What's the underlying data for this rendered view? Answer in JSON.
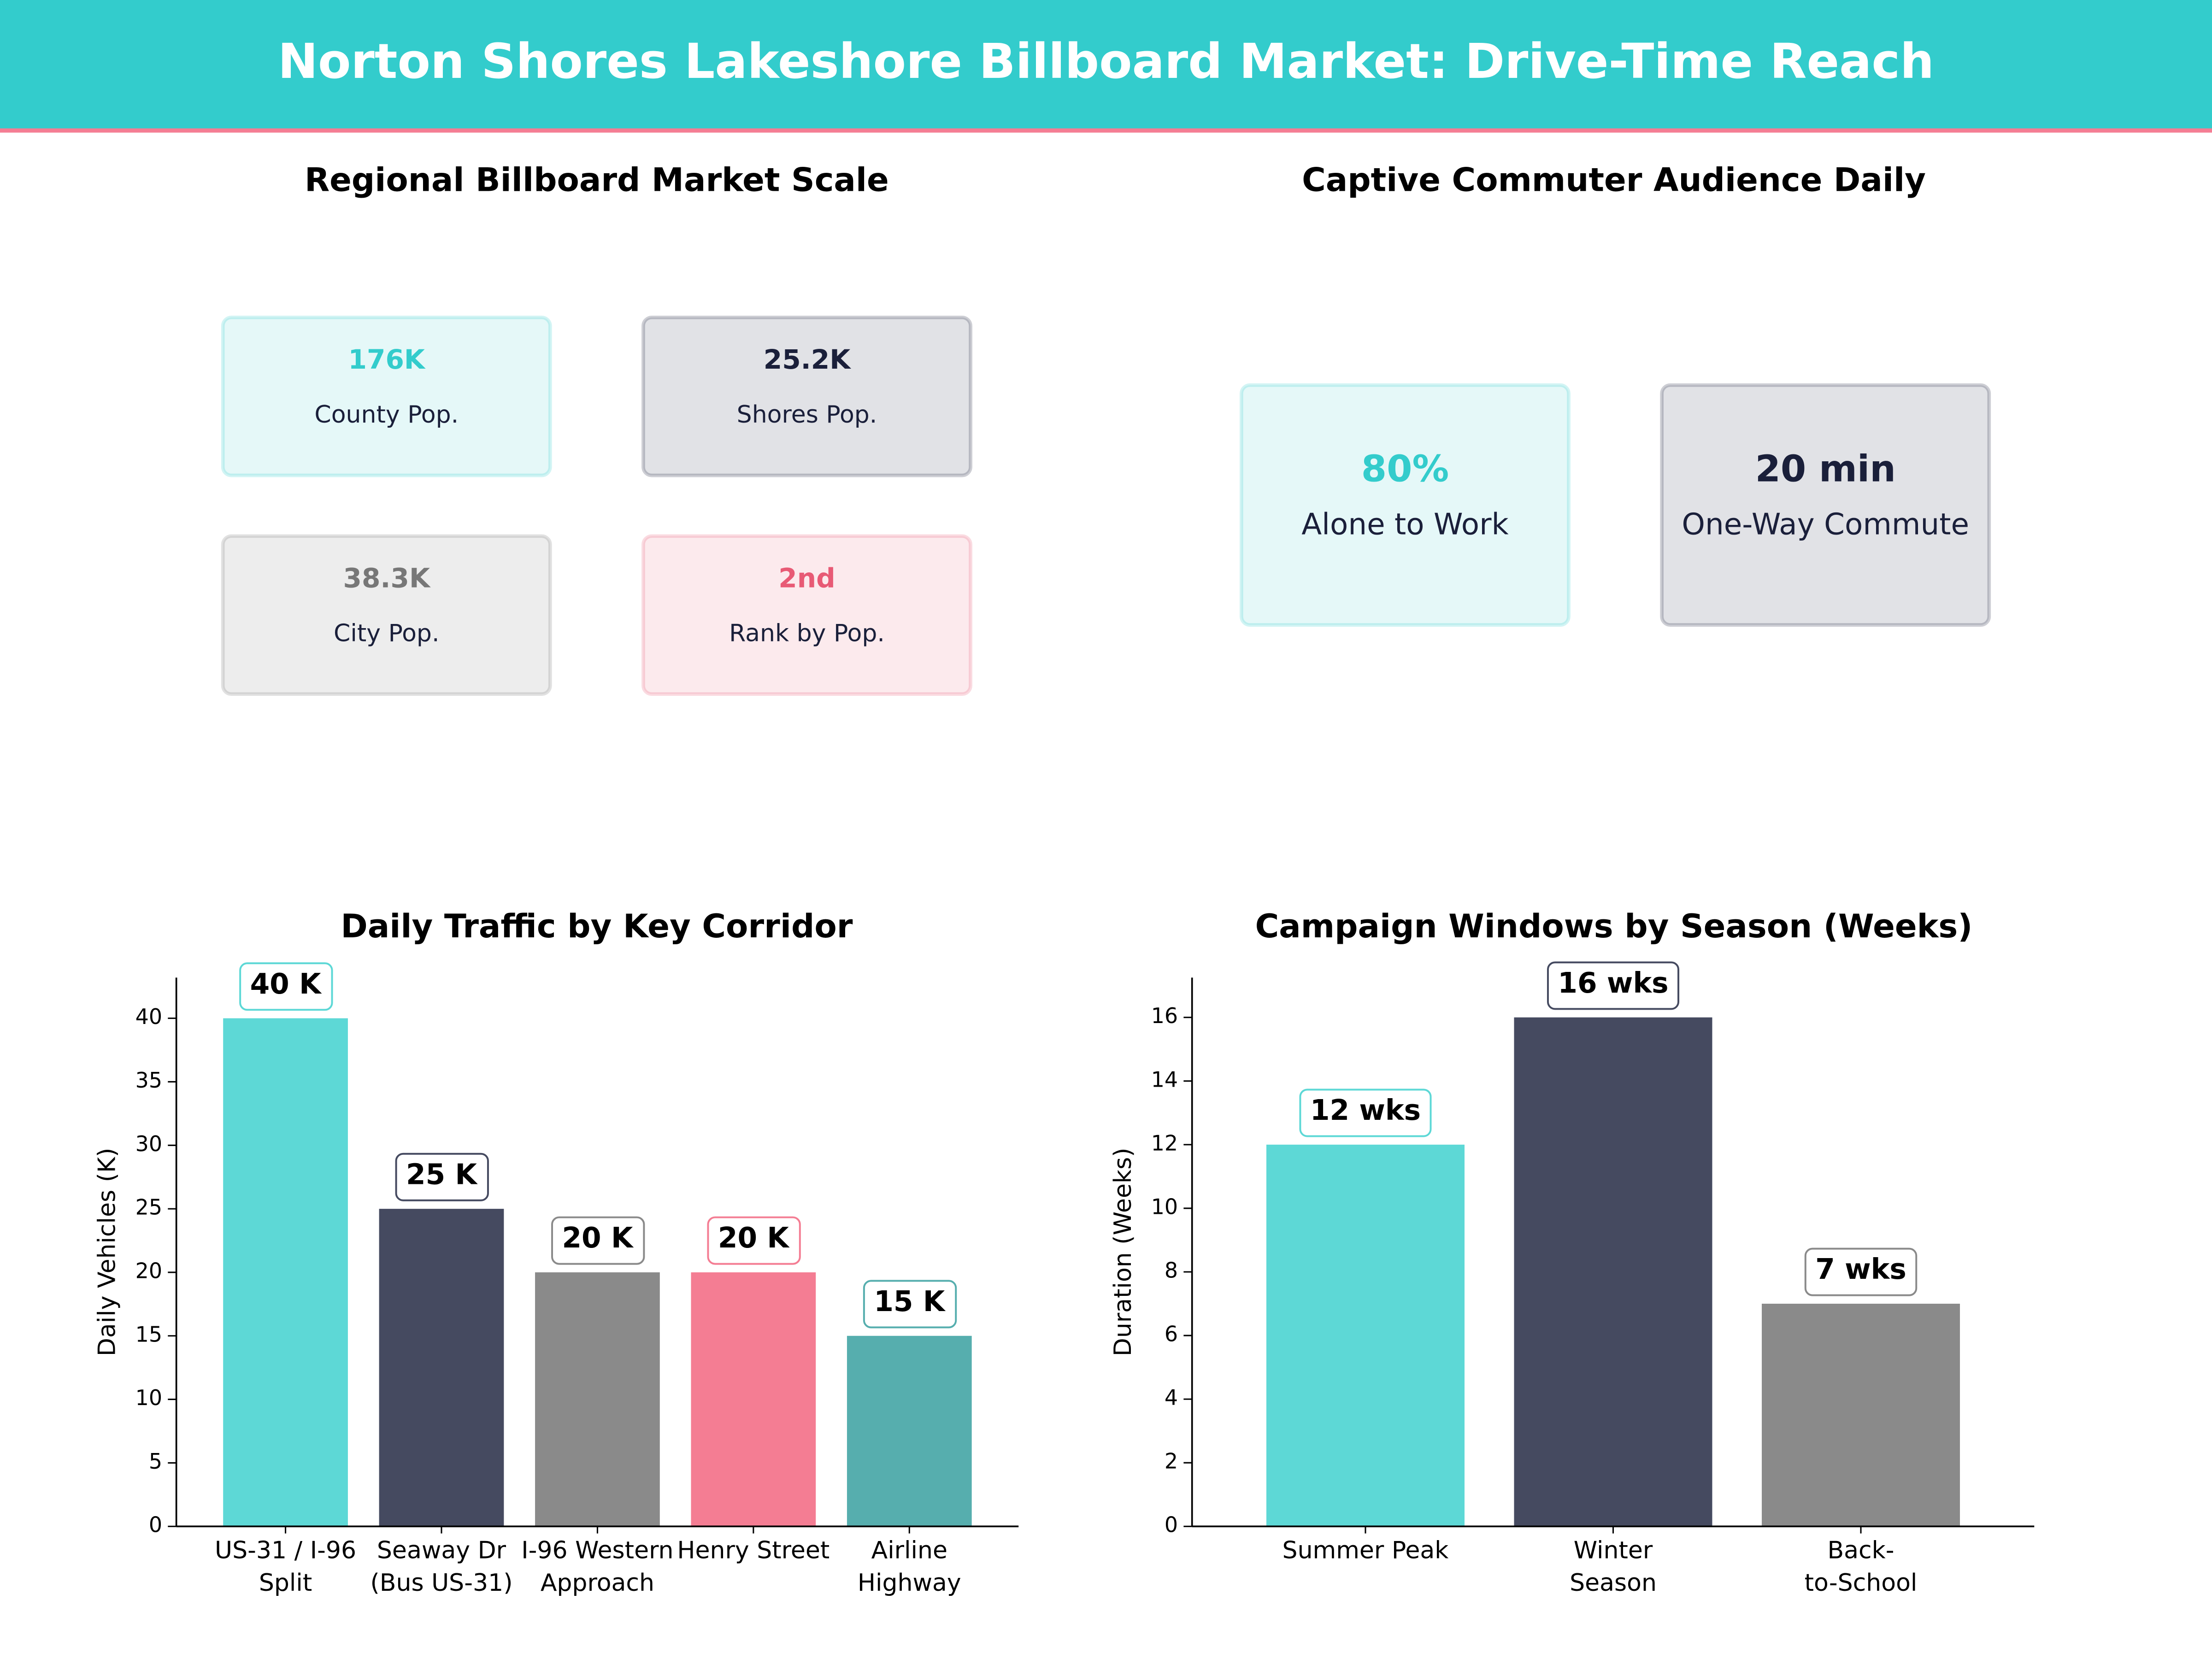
{
  "title": "Norton Shores Lakeshore Billboard Market: Drive-Time Reach",
  "kpi_panels": [
    {
      "title": "Regional Billboard Market Scale",
      "cards": [
        {
          "value": "176K",
          "label": "County Pop.",
          "color": "#33cccc"
        },
        {
          "value": "25.2K",
          "label": "Shores Pop.",
          "color": "#1a1f3a"
        },
        {
          "value": "38.3K",
          "label": "City Pop.",
          "color": "#777777"
        },
        {
          "value": "2nd",
          "label": "Rank by Pop.",
          "color": "#e85a75"
        }
      ]
    },
    {
      "title": "Captive Commuter Audience Daily",
      "cards": [
        {
          "value": "80%",
          "label": "Alone to Work",
          "color": "#33cccc"
        },
        {
          "value": "20 min",
          "label": "One-Way Commute",
          "color": "#1a1f3a"
        }
      ]
    }
  ],
  "chart_data": [
    {
      "type": "bar",
      "title": "Daily Traffic by Key Corridor",
      "y_label": "Daily Vehicles (K)",
      "categories": [
        "US-31 / I-96\nSplit",
        "Seaway Dr\n(Bus US-31)",
        "I-96 Western\nApproach",
        "Henry Street",
        "Airline\nHighway"
      ],
      "values": [
        40,
        25,
        20,
        20,
        15
      ],
      "value_labels": [
        "40 K",
        "25 K",
        "20 K",
        "20 K",
        "15 K"
      ],
      "colors": [
        "#5dd8d6",
        "#454a60",
        "#8a8a8a",
        "#f47d93",
        "#56aeae"
      ],
      "ylim": [
        0,
        43.2
      ],
      "yticks": [
        0,
        5,
        10,
        15,
        20,
        25,
        30,
        35,
        40
      ]
    },
    {
      "type": "bar",
      "title": "Campaign Windows by Season (Weeks)",
      "y_label": "Duration (Weeks)",
      "categories": [
        "Summer Peak",
        "Winter\nSeason",
        "Back-\nto-School"
      ],
      "values": [
        12,
        16,
        7
      ],
      "value_labels": [
        "12 wks",
        "16 wks",
        "7 wks"
      ],
      "colors": [
        "#5dd8d6",
        "#454a60",
        "#8a8a8a"
      ],
      "ylim": [
        0,
        17.25
      ],
      "yticks": [
        0,
        2,
        4,
        6,
        8,
        10,
        12,
        14,
        16
      ]
    }
  ]
}
